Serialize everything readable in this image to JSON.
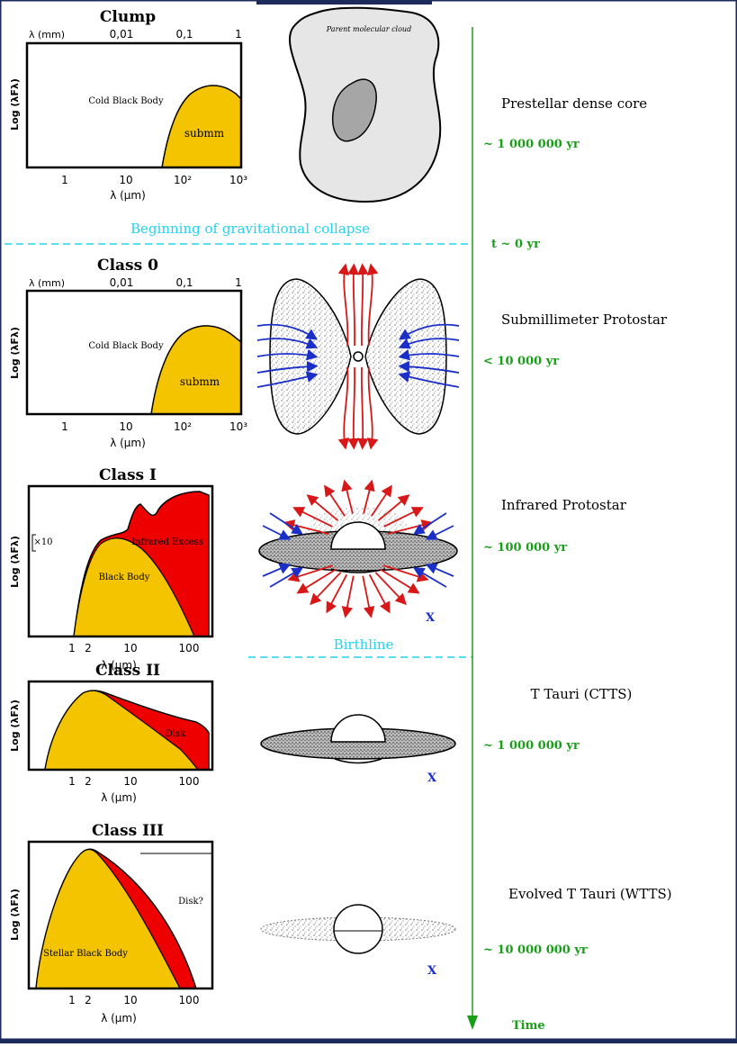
{
  "panels": [
    {
      "id": "clump",
      "title": "Clump",
      "ylabel": "Log (λFλ)",
      "xlabel": "λ (μm)",
      "top_axis_label": "λ (mm)",
      "top_ticks": [
        "0,01",
        "0,1",
        "1"
      ],
      "bottom_ticks": [
        "1",
        "10",
        "10²",
        "10³"
      ],
      "region_labels": [
        "Cold Black Body",
        "submm"
      ]
    },
    {
      "id": "class0",
      "title": "Class 0",
      "ylabel": "Log (λFλ)",
      "xlabel": "λ (μm)",
      "top_axis_label": "λ (mm)",
      "top_ticks": [
        "0,01",
        "0,1",
        "1"
      ],
      "bottom_ticks": [
        "1",
        "10",
        "10²",
        "10³"
      ],
      "region_labels": [
        "Cold Black Body",
        "submm"
      ]
    },
    {
      "id": "class1",
      "title": "Class I",
      "ylabel": "Log (λFλ)",
      "xlabel": "λ (μm)",
      "bottom_ticks": [
        "1",
        "2",
        "10",
        "100"
      ],
      "region_labels": [
        "Infrared Excess",
        "Black Body"
      ],
      "scale_note": "×10"
    },
    {
      "id": "class2",
      "title": "Class II",
      "ylabel": "Log (λFλ)",
      "xlabel": "λ (μm)",
      "bottom_ticks": [
        "1",
        "2",
        "10",
        "100"
      ],
      "region_labels": [
        "Disk"
      ]
    },
    {
      "id": "class3",
      "title": "Class III",
      "ylabel": "Log (λFλ)",
      "xlabel": "λ (μm)",
      "bottom_ticks": [
        "1",
        "2",
        "10",
        "100"
      ],
      "region_labels": [
        "Disk?",
        "Stellar Black Body"
      ]
    }
  ],
  "cloud_label": "Parent molecular cloud",
  "x_marker": "X",
  "stages": [
    {
      "name": "Prestellar dense core",
      "age": "~ 1 000 000 yr"
    },
    {
      "name": "Submillimeter Protostar",
      "age": "< 10 000 yr"
    },
    {
      "name": "Infrared Protostar",
      "age": "~ 100 000 yr"
    },
    {
      "name": "T Tauri (CTTS)",
      "age": "~ 1 000 000 yr"
    },
    {
      "name": "Evolved T Tauri (WTTS)",
      "age": "~ 10 000 000 yr"
    }
  ],
  "events": {
    "collapse": "Beginning of gravitational collapse",
    "t0": "t ~ 0 yr",
    "birthline": "Birthline"
  },
  "time_label": "Time",
  "colors": {
    "yellow": "#f5c400",
    "red": "#ee0000",
    "green": "#1a9e1a",
    "cyan": "#22d3ee",
    "navy": "#1c2a5c",
    "blue_arrow": "#1a2ec8",
    "red_arrow": "#d81818"
  }
}
